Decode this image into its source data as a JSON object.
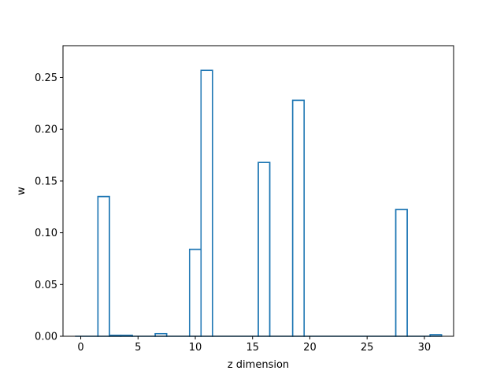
{
  "chart_data": {
    "type": "bar",
    "style": "step-outline",
    "title": "",
    "xlabel": "z dimension",
    "ylabel": "w",
    "xlim": [
      -1.55,
      32.55
    ],
    "ylim": [
      0,
      0.2808
    ],
    "xticks": [
      0,
      5,
      10,
      15,
      20,
      25,
      30
    ],
    "xtick_labels": [
      "0",
      "5",
      "10",
      "15",
      "20",
      "25",
      "30"
    ],
    "yticks": [
      0,
      0.05,
      0.1,
      0.15,
      0.2,
      0.25
    ],
    "ytick_labels": [
      "0.00",
      "0.05",
      "0.10",
      "0.15",
      "0.20",
      "0.25"
    ],
    "x": [
      0,
      1,
      2,
      3,
      4,
      5,
      6,
      7,
      8,
      9,
      10,
      11,
      12,
      13,
      14,
      15,
      16,
      17,
      18,
      19,
      20,
      21,
      22,
      23,
      24,
      25,
      26,
      27,
      28,
      29,
      30,
      31
    ],
    "values": [
      0,
      0,
      0.135,
      0.001,
      0.001,
      0,
      0,
      0.0025,
      0,
      0,
      0.084,
      0.257,
      0,
      0,
      0,
      0,
      0.168,
      0,
      0,
      0.228,
      0,
      0,
      0,
      0,
      0,
      0,
      0,
      0,
      0.1225,
      0,
      0,
      0.0015
    ],
    "line_color": "#1f77b4",
    "grid": false,
    "legend": "none"
  }
}
